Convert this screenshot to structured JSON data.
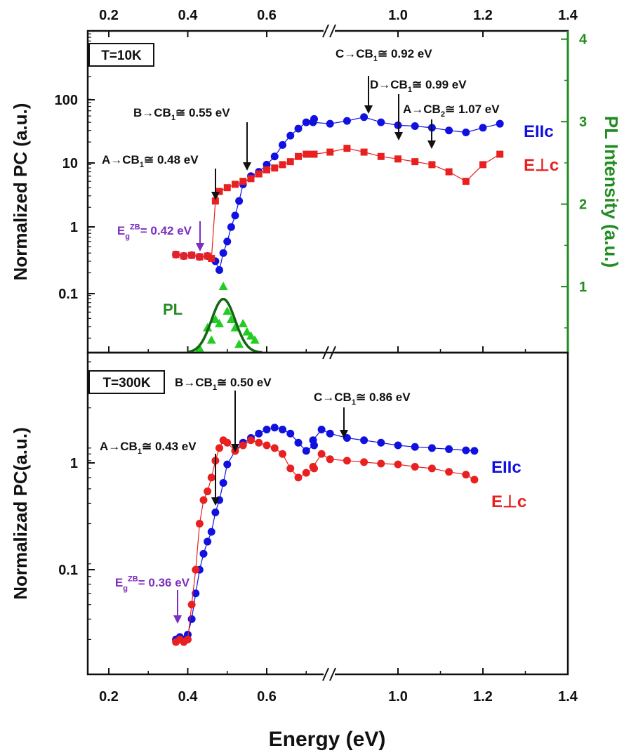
{
  "figure": {
    "xlabel": "Energy (eV)"
  },
  "chart_data": [
    {
      "panel": "top",
      "type": "scatter",
      "temperature_label": "T=10K",
      "x_ticks": [
        "0.2",
        "0.4",
        "0.6",
        "1.0",
        "1.2",
        "1.4"
      ],
      "axis_break_between": [
        0.73,
        0.78
      ],
      "xlim": [
        0.15,
        1.4
      ],
      "ylabel": "Normalized PC (a.u.)",
      "yscale": "log",
      "ylim": [
        0.012,
        1000
      ],
      "y_ticks": [
        "0.1",
        "1",
        "10",
        "100"
      ],
      "y2label": "PL Intensity (a.u.)",
      "y2lim": [
        0.2,
        4.1
      ],
      "y2_ticks": [
        "1",
        "2",
        "3",
        "4"
      ],
      "y2_color": "#228B22",
      "series": [
        {
          "name": "EIIc",
          "color": "#1010e0",
          "marker": "circle",
          "x": [
            0.37,
            0.39,
            0.41,
            0.43,
            0.45,
            0.47,
            0.48,
            0.49,
            0.5,
            0.51,
            0.52,
            0.53,
            0.54,
            0.56,
            0.58,
            0.6,
            0.62,
            0.64,
            0.66,
            0.68,
            0.7,
            0.72,
            0.8,
            0.84,
            0.88,
            0.92,
            0.96,
            1.0,
            1.04,
            1.08,
            1.12,
            1.16,
            1.2,
            1.24
          ],
          "y": [
            0.38,
            0.36,
            0.37,
            0.35,
            0.36,
            0.3,
            0.22,
            0.4,
            0.6,
            1.0,
            1.5,
            2.5,
            4.5,
            6.0,
            7.0,
            9.0,
            12,
            18,
            25,
            32,
            40,
            45,
            40,
            38,
            42,
            48,
            40,
            36,
            35,
            33,
            30,
            28,
            33,
            38
          ]
        },
        {
          "name": "E⊥c",
          "color": "#e82020",
          "marker": "square",
          "x": [
            0.37,
            0.39,
            0.41,
            0.43,
            0.45,
            0.46,
            0.47,
            0.48,
            0.5,
            0.52,
            0.54,
            0.56,
            0.58,
            0.6,
            0.62,
            0.64,
            0.66,
            0.68,
            0.7,
            0.72,
            0.8,
            0.84,
            0.88,
            0.92,
            0.96,
            1.0,
            1.04,
            1.08,
            1.12,
            1.16,
            1.2,
            1.24
          ],
          "y": [
            0.38,
            0.36,
            0.37,
            0.35,
            0.36,
            0.33,
            2.5,
            3.5,
            4.0,
            4.5,
            5.0,
            5.5,
            6.5,
            7.5,
            8.0,
            9.0,
            10,
            12,
            13,
            13,
            13,
            14,
            16,
            14,
            12,
            11,
            10,
            9,
            7,
            5,
            9,
            13
          ]
        },
        {
          "name": "PL",
          "color": "#22cc22",
          "axis": "y2",
          "marker": "triangle",
          "x": [
            0.43,
            0.45,
            0.46,
            0.47,
            0.48,
            0.49,
            0.5,
            0.51,
            0.52,
            0.53,
            0.54,
            0.55,
            0.56,
            0.57
          ],
          "y": [
            0.25,
            0.5,
            0.35,
            0.6,
            0.55,
            1.0,
            0.7,
            0.6,
            0.5,
            0.3,
            0.55,
            0.45,
            0.4,
            0.35
          ]
        },
        {
          "name": "PL fit",
          "color": "#116611",
          "axis": "y2",
          "type": "line",
          "gaussian": {
            "center": 0.49,
            "sigma": 0.03,
            "amplitude": 0.65,
            "baseline": 0.2
          }
        }
      ],
      "legend": [
        {
          "text": "EIIc",
          "color": "#1010e0"
        },
        {
          "text": "E⊥c",
          "color": "#e82020"
        },
        {
          "text": "PL",
          "color": "#228B22"
        }
      ],
      "annotations": [
        {
          "base": "A→CB",
          "sub": "1",
          "rest": "≅ 0.48 eV",
          "target_x": 0.48,
          "target_y": 3.0
        },
        {
          "base": "B→CB",
          "sub": "1",
          "rest": "≅ 0.55 eV",
          "target_x": 0.55,
          "target_y": 6.0
        },
        {
          "base": "C→CB",
          "sub": "1",
          "rest": "≅ 0.92 eV",
          "target_x": 0.92,
          "target_y": 50
        },
        {
          "base": "D→CB",
          "sub": "1",
          "rest": "≅ 0.99 eV",
          "target_x": 0.99,
          "target_y": 13
        },
        {
          "base": "A→CB",
          "sub": "2",
          "rest": "≅ 1.07 eV",
          "target_x": 1.07,
          "target_y": 10
        }
      ],
      "bandgap_label": {
        "prefix": "E",
        "sub": "g",
        "sup": "ZB",
        "rest": "= 0.42 eV",
        "target_x": 0.42,
        "target_y": 0.4,
        "color": "#7b2fbf"
      }
    },
    {
      "panel": "bottom",
      "type": "scatter",
      "temperature_label": "T=300K",
      "x_ticks": [
        "0.2",
        "0.4",
        "0.6",
        "1.0",
        "1.2",
        "1.4"
      ],
      "axis_break_between": [
        0.73,
        0.78
      ],
      "xlim": [
        0.15,
        1.4
      ],
      "ylabel": "Normalizad PC(a.u.)",
      "yscale": "log",
      "ylim": [
        0.01,
        6
      ],
      "y_ticks": [
        "0.1",
        "1"
      ],
      "series": [
        {
          "name": "EIIc",
          "color": "#1010e0",
          "marker": "circle",
          "x": [
            0.37,
            0.38,
            0.39,
            0.4,
            0.41,
            0.42,
            0.43,
            0.44,
            0.45,
            0.46,
            0.47,
            0.48,
            0.49,
            0.5,
            0.52,
            0.54,
            0.56,
            0.58,
            0.6,
            0.62,
            0.64,
            0.66,
            0.68,
            0.7,
            0.72,
            0.8,
            0.82,
            0.84,
            0.88,
            0.92,
            0.96,
            1.0,
            1.04,
            1.08,
            1.12,
            1.16,
            1.18
          ],
          "y": [
            0.02,
            0.021,
            0.02,
            0.022,
            0.03,
            0.05,
            0.08,
            0.11,
            0.14,
            0.17,
            0.25,
            0.32,
            0.45,
            0.65,
            0.85,
            1.0,
            1.1,
            1.2,
            1.3,
            1.35,
            1.3,
            1.2,
            1.0,
            0.85,
            0.95,
            1.05,
            1.3,
            1.2,
            1.1,
            1.05,
            1.0,
            0.95,
            0.92,
            0.9,
            0.88,
            0.86,
            0.85
          ]
        },
        {
          "name": "E⊥c",
          "color": "#e82020",
          "marker": "circle",
          "x": [
            0.37,
            0.38,
            0.39,
            0.4,
            0.41,
            0.42,
            0.43,
            0.44,
            0.45,
            0.46,
            0.47,
            0.48,
            0.49,
            0.5,
            0.52,
            0.54,
            0.56,
            0.58,
            0.6,
            0.62,
            0.64,
            0.66,
            0.68,
            0.7,
            0.72,
            0.8,
            0.82,
            0.84,
            0.88,
            0.92,
            0.96,
            1.0,
            1.04,
            1.08,
            1.12,
            1.16,
            1.18
          ],
          "y": [
            0.019,
            0.02,
            0.019,
            0.02,
            0.04,
            0.08,
            0.2,
            0.32,
            0.38,
            0.5,
            0.7,
            0.9,
            1.05,
            1.0,
            0.85,
            0.95,
            1.05,
            1.0,
            0.95,
            0.9,
            0.8,
            0.6,
            0.5,
            0.55,
            0.6,
            0.62,
            0.8,
            0.72,
            0.7,
            0.68,
            0.66,
            0.65,
            0.62,
            0.6,
            0.56,
            0.53,
            0.48
          ]
        }
      ],
      "legend": [
        {
          "text": "EIIc",
          "color": "#1010e0"
        },
        {
          "text": "E⊥c",
          "color": "#e82020"
        }
      ],
      "annotations": [
        {
          "base": "A→CB",
          "sub": "1",
          "rest": "≅ 0.43 eV",
          "target_x": 0.465,
          "target_y": 0.45
        },
        {
          "base": "B→CB",
          "sub": "1",
          "rest": "≅ 0.50 eV",
          "target_x": 0.51,
          "target_y": 0.95
        },
        {
          "base": "C→CB",
          "sub": "1",
          "rest": "≅ 0.86 eV",
          "target_x": 0.86,
          "target_y": 1.3
        }
      ],
      "bandgap_label": {
        "prefix": "E",
        "sub": "g",
        "sup": "ZB",
        "rest": "= 0.36 eV",
        "target_x": 0.365,
        "target_y": 0.02,
        "color": "#7b2fbf"
      }
    }
  ]
}
